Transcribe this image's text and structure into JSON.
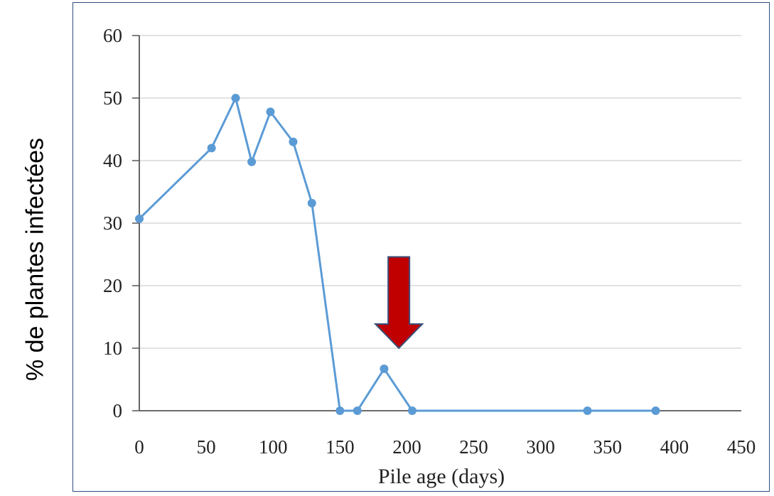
{
  "chart_data": {
    "type": "line",
    "title": "",
    "xlabel": "Pile age (days)",
    "ylabel": "% de plantes infectées",
    "xlim": [
      0,
      450
    ],
    "ylim": [
      0,
      60
    ],
    "x_ticks": [
      0,
      50,
      100,
      150,
      200,
      250,
      300,
      350,
      400,
      450
    ],
    "y_ticks": [
      0,
      10,
      20,
      30,
      40,
      50,
      60
    ],
    "grid": "horizontal",
    "series": [
      {
        "color": "#5b9bd5",
        "points": [
          {
            "x": 0,
            "y": 30.7
          },
          {
            "x": 54,
            "y": 42
          },
          {
            "x": 72,
            "y": 50
          },
          {
            "x": 84,
            "y": 39.8
          },
          {
            "x": 98,
            "y": 47.8
          },
          {
            "x": 115,
            "y": 43
          },
          {
            "x": 129,
            "y": 33.2
          },
          {
            "x": 150,
            "y": 0
          },
          {
            "x": 163,
            "y": 0
          },
          {
            "x": 183,
            "y": 6.7
          },
          {
            "x": 204,
            "y": 0
          },
          {
            "x": 335,
            "y": 0
          },
          {
            "x": 386,
            "y": 0
          }
        ]
      }
    ],
    "annotations": [
      {
        "type": "arrow-down",
        "x": 194,
        "y_top": 24.6,
        "y_tip": 10,
        "color": "#c00000"
      }
    ]
  }
}
